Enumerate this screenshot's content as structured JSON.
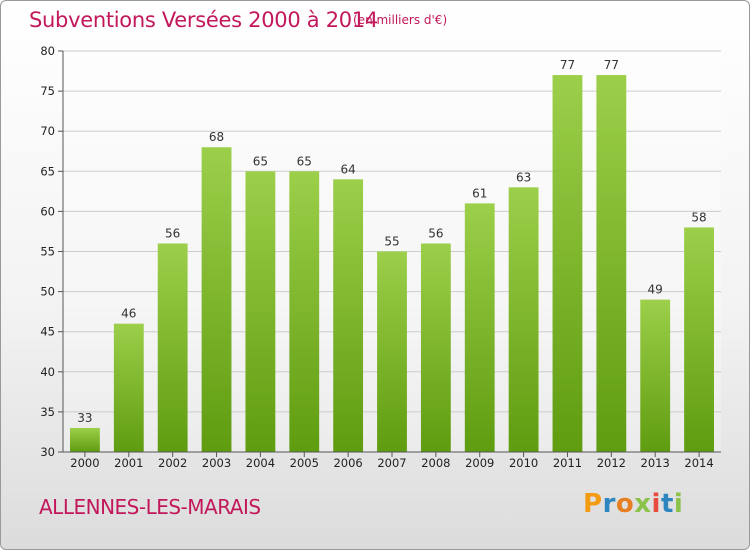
{
  "header": {
    "title": "Subventions Versées 2000 à 2014",
    "unit": "(en milliers d'€)"
  },
  "footer": {
    "commune": "ALLENNES-LES-MARAIS",
    "logo": {
      "letters": [
        "P",
        "r",
        "o",
        "x",
        "i",
        "t",
        "i"
      ],
      "colors": [
        "#f39c12",
        "#2e86c1",
        "#e67e22",
        "#8bc34a",
        "#e74c3c",
        "#2e86c1",
        "#8bc34a"
      ]
    }
  },
  "colors": {
    "bar_light": "#9ccf4a",
    "bar_dark": "#5f9c10",
    "title": "#c2185b",
    "grid": "#cccccc"
  },
  "chart_data": {
    "type": "bar",
    "categories": [
      "2000",
      "2001",
      "2002",
      "2003",
      "2004",
      "2005",
      "2006",
      "2007",
      "2008",
      "2009",
      "2010",
      "2011",
      "2012",
      "2013",
      "2014"
    ],
    "values": [
      33,
      46,
      56,
      68,
      65,
      65,
      64,
      55,
      56,
      61,
      63,
      77,
      77,
      49,
      58
    ],
    "ylim": [
      30,
      80
    ],
    "yticks": [
      30,
      35,
      40,
      45,
      50,
      55,
      60,
      65,
      70,
      75,
      80
    ],
    "grid": true,
    "data_labels": true
  }
}
